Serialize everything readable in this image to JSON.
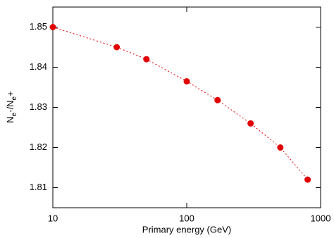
{
  "chart_data": {
    "type": "line",
    "x_label": "Primary energy (GeV)",
    "y_label": [
      "N",
      "e",
      "-/N",
      "e",
      "+"
    ],
    "x": [
      10,
      30,
      50,
      100,
      170,
      300,
      500,
      800
    ],
    "series": [
      {
        "color": "#e00000",
        "values": [
          1.85,
          1.845,
          1.842,
          1.8365,
          1.8318,
          1.826,
          1.82,
          1.812
        ]
      }
    ],
    "xlim": [
      10,
      1000
    ],
    "xticks": [
      10,
      100,
      1000
    ],
    "xscale": "log",
    "ylim": [
      1.805,
      1.855
    ],
    "yticks": [
      1.81,
      1.82,
      1.83,
      1.84,
      1.85
    ]
  }
}
